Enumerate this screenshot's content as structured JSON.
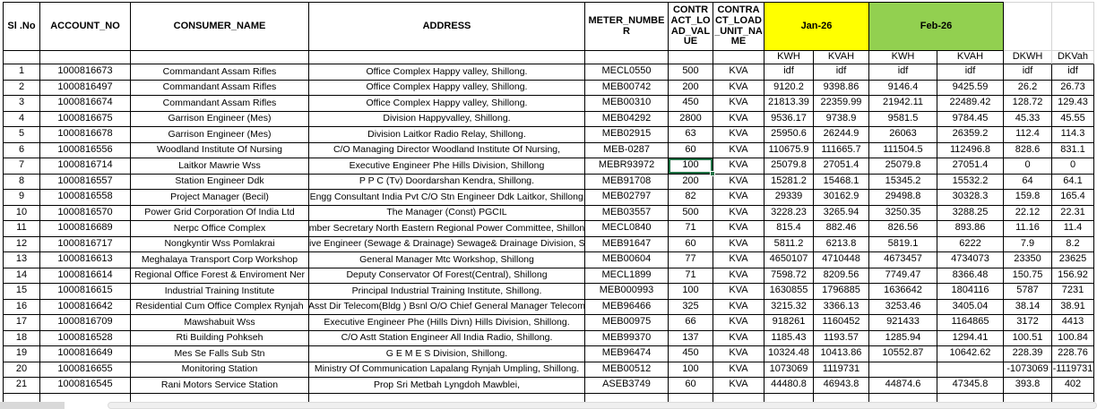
{
  "table": {
    "headers": {
      "sl_no": "Sl .No",
      "account_no": "ACCOUNT_NO",
      "consumer_name": "CONSUMER_NAME",
      "address": "ADDRESS",
      "meter_number": "METER_NUMBER",
      "contract_load_value": "CONTRACT_LOAD_VALUE",
      "contract_load_unit_name": "CONTRACT_LOAD_UNIT_NAME",
      "jan": "Jan-26",
      "feb": "Feb-26"
    },
    "sub_headers": {
      "jan_kwh": "KWH",
      "jan_kvah": "KVAH",
      "feb_kwh": "KWH",
      "feb_kvah": "KVAH",
      "dkwh": "DKWH",
      "dkvah": "DKVah"
    },
    "columns": [
      "sl_no",
      "account_no",
      "consumer_name",
      "address",
      "meter_number",
      "contract_load_value",
      "contract_load_unit_name",
      "jan_kwh",
      "jan_kvah",
      "feb_kwh",
      "feb_kvah",
      "dkwh",
      "dkvah"
    ],
    "rows": [
      [
        "1",
        "1000816673",
        "Commandant Assam Rifles",
        "Office Complex Happy valley, Shillong.",
        "MECL0550",
        "500",
        "KVA",
        "idf",
        "idf",
        "idf",
        "idf",
        "idf",
        "idf"
      ],
      [
        "2",
        "1000816497",
        "Commandant Assam Rifles",
        "Office Complex Happy valley, Shillong.",
        "MEB00742",
        "200",
        "KVA",
        "9120.2",
        "9398.86",
        "9146.4",
        "9425.59",
        "26.2",
        "26.73"
      ],
      [
        "3",
        "1000816674",
        "Commandant Assam Rifles",
        "Office Complex Happy valley, Shillong.",
        "MEB00310",
        "450",
        "KVA",
        "21813.39",
        "22359.99",
        "21942.11",
        "22489.42",
        "128.72",
        "129.43"
      ],
      [
        "4",
        "1000816675",
        "Garrison Engineer (Mes)",
        "Division Happyvalley, Shillong.",
        "MEB04292",
        "2800",
        "KVA",
        "9536.17",
        "9738.9",
        "9581.5",
        "9784.45",
        "45.33",
        "45.55"
      ],
      [
        "5",
        "1000816678",
        "Garrison Engineer (Mes)",
        "Division Laitkor Radio Relay, Shillong.",
        "MEB02915",
        "63",
        "KVA",
        "25950.6",
        "26244.9",
        "26063",
        "26359.2",
        "112.4",
        "114.3"
      ],
      [
        "6",
        "1000816556",
        "Woodland Institute Of Nursing",
        "C/O Managing Director Woodland Institute Of Nursing,",
        "MEB-0287",
        "60",
        "KVA",
        "110675.9",
        "111665.7",
        "111504.5",
        "112496.8",
        "828.6",
        "831.1"
      ],
      [
        "7",
        "1000816714",
        "Laitkor Mawrie Wss",
        "Executive Engineer Phe Hills Division, Shillong",
        "MEBR93972",
        "100",
        "KVA",
        "25079.8",
        "27051.4",
        "25079.8",
        "27051.4",
        "0",
        "0"
      ],
      [
        "8",
        "1000816557",
        "Station Engineer Ddk",
        "P P C (Tv) Doordarshan Kendra, Shillong.",
        "MEB91708",
        "200",
        "KVA",
        "15281.2",
        "15468.1",
        "15345.2",
        "15532.2",
        "64",
        "64.1"
      ],
      [
        "9",
        "1000816558",
        "Project Manager (Becil)",
        "st Engg Consultant India Pvt C/O Stn Engineer Ddk Laitkor, Shillong. #",
        "MEB02797",
        "82",
        "KVA",
        "29339",
        "30162.9",
        "29498.8",
        "30328.3",
        "159.8",
        "165.4"
      ],
      [
        "10",
        "1000816570",
        "Power Grid Corporation Of India Ltd",
        "The Manager (Const) PGCIL",
        "MEB03557",
        "500",
        "KVA",
        "3228.23",
        "3265.94",
        "3250.35",
        "3288.25",
        "22.12",
        "22.31"
      ],
      [
        "11",
        "1000816689",
        "Nerpc Office Complex",
        "ember Secretary North Eastern Regional Power Committee, Shillong",
        "MECL0840",
        "71",
        "KVA",
        "815.4",
        "882.46",
        "826.56",
        "893.86",
        "11.16",
        "11.4"
      ],
      [
        "12",
        "1000816717",
        "Nongkyntir Wss Pomlakrai",
        "utive Engineer (Sewage & Drainage) Sewage& Drainage Division, Shi",
        "MEB91647",
        "60",
        "KVA",
        "5811.2",
        "6213.8",
        "5819.1",
        "6222",
        "7.9",
        "8.2"
      ],
      [
        "13",
        "1000816613",
        "Meghalaya Transport Corp Workshop",
        "General Manager Mtc Workshop, Shillong",
        "MEB00604",
        "77",
        "KVA",
        "4650107",
        "4710448",
        "4673457",
        "4734073",
        "23350",
        "23625"
      ],
      [
        "14",
        "1000816614",
        "Regional Office Forest & Enviroment Ner",
        "Deputy Conservator Of Forest(Central), Shillong",
        "MECL1899",
        "71",
        "KVA",
        "7598.72",
        "8209.56",
        "7749.47",
        "8366.48",
        "150.75",
        "156.92"
      ],
      [
        "15",
        "1000816615",
        "Industrial Training Institute",
        "Principal Industrial Training Institute, Shillong.",
        "MEB000993",
        "100",
        "KVA",
        "1630855",
        "1796885",
        "1636642",
        "1804116",
        "5787",
        "7231"
      ],
      [
        "16",
        "1000816642",
        "Residential Cum Office Complex Rynjah",
        "Asst Dir Telecom(Bldg ) Bsnl O/O Chief General Manager Telecom",
        "MEB96466",
        "325",
        "KVA",
        "3215.32",
        "3366.13",
        "3253.46",
        "3405.04",
        "38.14",
        "38.91"
      ],
      [
        "17",
        "1000816709",
        "Mawshabuit Wss",
        "Executive Engineer Phe (Hills Divn) Hills Division, Shillong.",
        "MEB00975",
        "66",
        "KVA",
        "918261",
        "1160452",
        "921433",
        "1164865",
        "3172",
        "4413"
      ],
      [
        "18",
        "1000816528",
        "Rti Building Pohkseh",
        "C/O Astt Station Engineer All India Radio, Shillong.",
        "MEB99370",
        "137",
        "KVA",
        "1185.43",
        "1193.57",
        "1285.94",
        "1294.41",
        "100.51",
        "100.84"
      ],
      [
        "19",
        "1000816649",
        "Mes Se Falls Sub Stn",
        "G E M E S Division, Shillong.",
        "MEB96474",
        "450",
        "KVA",
        "10324.48",
        "10413.86",
        "10552.87",
        "10642.62",
        "228.39",
        "228.76"
      ],
      [
        "20",
        "1000816655",
        "Monitoring Station",
        "Ministry Of Communication Lapalang Rynjah Umpling, Shillong.",
        "MEB00512",
        "100",
        "KVA",
        "1073069",
        "1119731",
        "",
        "",
        "-1073069",
        "-1119731"
      ],
      [
        "21",
        "1000816545",
        "Rani Motors Service Station",
        "Prop Sri Metbah Lyngdoh Mawblei,",
        "ASEB3749",
        "60",
        "KVA",
        "44480.8",
        "46943.8",
        "44874.6",
        "47345.8",
        "393.8",
        "402"
      ]
    ],
    "selected_cell": {
      "row_index": 6,
      "col_index": 5,
      "value": "100"
    }
  },
  "colors": {
    "jan_fill": "#FFFF00",
    "feb_fill": "#92D050",
    "selection_border": "#217346",
    "grid_border": "#000000",
    "faint_gridline": "#d4d4d4",
    "scrollbar_track": "#efefef",
    "sheet_tab_block": "#d9d9d9"
  }
}
